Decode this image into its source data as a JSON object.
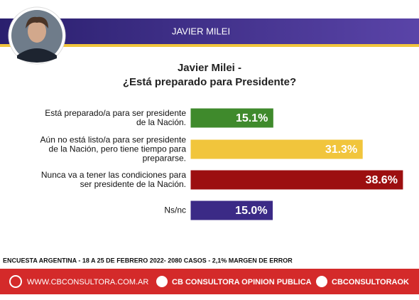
{
  "header": {
    "title": "JAVIER MILEI"
  },
  "chart_data": {
    "type": "bar",
    "orientation": "horizontal",
    "title": "Javier Milei -",
    "subtitle": "¿Está preparado para Presidente?",
    "categories": [
      "Está preparado/a para ser presidente\nde la Nación.",
      "Aún no está listo/a para ser presidente\nde la Nación, pero tiene tiempo para\nprepararse.",
      "Nunca va a tener las condiciones para\nser presidente de la Nación.",
      "Ns/nc"
    ],
    "values": [
      15.1,
      31.3,
      38.6,
      15.0
    ],
    "value_labels": [
      "15.1%",
      "31.3%",
      "38.6%",
      "15.0%"
    ],
    "colors": [
      "#3f8a2c",
      "#f1c53c",
      "#9c0f10",
      "#3b2a86"
    ]
  },
  "footer": {
    "note": "ENCUESTA ARGENTINA - 18 A 25 DE FEBRERO 2022- 2080 CASOS - 2,1% MARGEN DE ERROR",
    "links": [
      "WWW.CBCONSULTORA.COM.AR",
      "CB CONSULTORA OPINION PUBLICA",
      "CBCONSULTORAOK"
    ]
  }
}
